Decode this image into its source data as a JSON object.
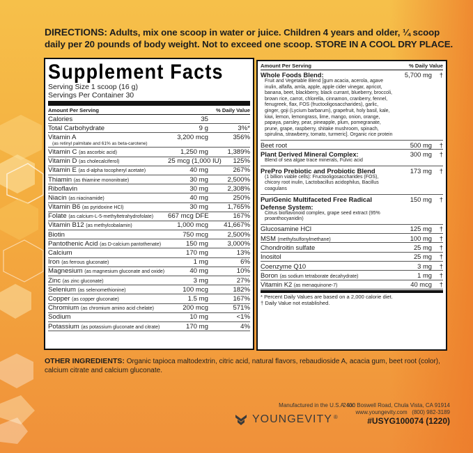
{
  "directions": {
    "label": "DIRECTIONS:",
    "text": "Adults, mix one scoop in water or juice. Children 4 years and older, ¼ scoop daily per 20 pounds of body weight. Not to exceed one scoop.",
    "storage": "STORE IN A COOL DRY PLACE."
  },
  "supplement_facts": {
    "title": "Supplement Facts",
    "serving_size": "Serving Size 1 scoop (16 g)",
    "servings_per_container": "Servings Per Container 30",
    "header_amount": "Amount Per Serving",
    "header_dv": "% Daily Value",
    "rows": [
      {
        "name": "Calories",
        "sub": "",
        "sub2": "",
        "amount": "35",
        "dv": ""
      },
      {
        "name": "Total Carbohydrate",
        "sub": "",
        "sub2": "",
        "amount": "9 g",
        "dv": "3%*"
      },
      {
        "name": "Vitamin A",
        "sub": "",
        "sub2": "(as retinyl palmitate and 61% as beta-carotene)",
        "amount": "3,200 mcg",
        "dv": "356%"
      },
      {
        "name": "Vitamin C",
        "sub": "(as ascorbic acid)",
        "sub2": "",
        "amount": "1,250 mg",
        "dv": "1,389%"
      },
      {
        "name": "Vitamin D",
        "sub": "(as cholecalciferol)",
        "sub2": "",
        "amount": "25 mcg (1,000 IU)",
        "dv": "125%"
      },
      {
        "name": "Vitamin E",
        "sub": "(as d-alpha tocopheryl acetate)",
        "sub2": "",
        "amount": "40 mg",
        "dv": "267%"
      },
      {
        "name": "Thiamin",
        "sub": "(as thiamine mononitrate)",
        "sub2": "",
        "amount": "30 mg",
        "dv": "2,500%"
      },
      {
        "name": "Riboflavin",
        "sub": "",
        "sub2": "",
        "amount": "30 mg",
        "dv": "2,308%"
      },
      {
        "name": "Niacin",
        "sub": "(as niacinamide)",
        "sub2": "",
        "amount": "40 mg",
        "dv": "250%"
      },
      {
        "name": "Vitamin B6",
        "sub": "(as pyridoxine HCl)",
        "sub2": "",
        "amount": "30 mg",
        "dv": "1,765%"
      },
      {
        "name": "Folate",
        "sub": "(as calcium-L-5-methyltetrahydrofolate)",
        "sub2": "",
        "amount": "667 mcg DFE",
        "dv": "167%"
      },
      {
        "name": "Vitamin B12",
        "sub": "(as methylcobalamin)",
        "sub2": "",
        "amount": "1,000 mcg",
        "dv": "41,667%"
      },
      {
        "name": "Biotin",
        "sub": "",
        "sub2": "",
        "amount": "750 mcg",
        "dv": "2,500%"
      },
      {
        "name": "Pantothenic Acid",
        "sub": "(as D-calcium pantothenate)",
        "sub2": "",
        "amount": "150 mg",
        "dv": "3,000%"
      },
      {
        "name": "Calcium",
        "sub": "",
        "sub2": "",
        "amount": "170 mg",
        "dv": "13%"
      },
      {
        "name": "Iron",
        "sub": "(as ferrous gluconate)",
        "sub2": "",
        "amount": "1 mg",
        "dv": "6%"
      },
      {
        "name": "Magnesium",
        "sub": "(as magnesium gluconate and oxide)",
        "sub2": "",
        "amount": "40 mg",
        "dv": "10%"
      },
      {
        "name": "Zinc",
        "sub": "(as zinc gluconate)",
        "sub2": "",
        "amount": "3 mg",
        "dv": "27%"
      },
      {
        "name": "Selenium",
        "sub": "(as selenomethionine)",
        "sub2": "",
        "amount": "100 mcg",
        "dv": "182%"
      },
      {
        "name": "Copper",
        "sub": "(as copper gluconate)",
        "sub2": "",
        "amount": "1.5 mg",
        "dv": "167%"
      },
      {
        "name": "Chromium",
        "sub": "(as chromium amino acid chelate)",
        "sub2": "",
        "amount": "200 mcg",
        "dv": "571%"
      },
      {
        "name": "Sodium",
        "sub": "",
        "sub2": "",
        "amount": "10 mg",
        "dv": "<1%"
      },
      {
        "name": "Potassium",
        "sub": "(as potassium gluconate and citrate)",
        "sub2": "",
        "amount": "170 mg",
        "dv": "4%"
      }
    ]
  },
  "right_panel": {
    "header_amount": "Amount Per Serving",
    "header_dv": "% Daily Value",
    "blends": [
      {
        "name": "Whole Foods Blend:",
        "amount": "5,700 mg",
        "dagger": "†",
        "desc": "Fruit and Vegetable Blend [gum acacia, acerola, agave inulin, alfalfa, amla, apple, apple cider vinegar, apricot, banana, beet, blackberry, black currant, blueberry, broccoli, brown rice, carrot, chlorella, cinnamon, cranberry, fennel, fenugreek, flax, FOS (fructooligosaccharides), garlic, ginger, goji (Lycium barbarum), grapefruit, holy basil, kale, kiwi, lemon, lemongrass, lime, mango, onion, orange, papaya, parsley, pear, pineapple, plum, pomegranate, prune, grape, raspberry, shitake mushroom, spinach, spirulina, strawberry, tomato, turmeric]. Organic rice protein"
      },
      {
        "name": "Beet root",
        "amount": "500 mg",
        "dagger": "†",
        "desc": ""
      },
      {
        "name": "Plant Derived Mineral Complex:",
        "amount": "300 mg",
        "dagger": "†",
        "desc": "Blend of sea algae trace minerals, Fulvic acid"
      },
      {
        "name": "PrePro Prebiotic and Probiotic Blend",
        "amount": "173 mg",
        "dagger": "†",
        "desc": "(1 billion viable cells): Fructooligosaccharides (FOS), chicory root inulin, Lactobacillus acidophilus, Bacillus coagulans"
      },
      {
        "name": "PuriGenic Multifaceted Free Radical Defense System:",
        "amount": "150 mg",
        "dagger": "†",
        "desc": "Citrus bioflavonoid complex, grape seed extract (95% proanthocyanidin)"
      }
    ],
    "rows": [
      {
        "name": "Glucosamine HCl",
        "sub": "",
        "amount": "125 mg",
        "dagger": "†"
      },
      {
        "name": "MSM",
        "sub": "(methylsulfonylmethane)",
        "amount": "100 mg",
        "dagger": "†"
      },
      {
        "name": "Chondroitin sulfate",
        "sub": "",
        "amount": "25 mg",
        "dagger": "†"
      },
      {
        "name": "Inositol",
        "sub": "",
        "amount": "25 mg",
        "dagger": "†"
      },
      {
        "name": "Coenzyme Q10",
        "sub": "",
        "amount": "3 mg",
        "dagger": "†"
      },
      {
        "name": "Boron",
        "sub": "(as sodium tetraborate decahydrate)",
        "amount": "1 mg",
        "dagger": "†"
      },
      {
        "name": "Vitamin K2",
        "sub": "(as menaquinone-7)",
        "amount": "40 mcg",
        "dagger": "†"
      }
    ],
    "footnote_1": "* Percent Daily Values are based on a 2,000 calorie diet.",
    "footnote_2": "† Daily Value not established."
  },
  "other_ingredients": {
    "label": "OTHER INGREDIENTS:",
    "text": "Organic tapioca maltodextrin, citric acid, natural flavors, rebaudioside A, acacia gum, beet root (color), calcium citrate and calcium gluconate."
  },
  "footer": {
    "manufactured": "Manufactured in the U.S.A. for:",
    "brand": "YOUNGEVITY",
    "trademark": "®",
    "address": "2400 Boswell Road, Chula Vista, CA 91914",
    "website_phone": "www.youngevity.com   (800) 982-3189",
    "product_code": "#USYG100074 (1220)"
  },
  "colors": {
    "bg_top": "#f6c04a",
    "bg_bottom": "#f0903a",
    "ink": "#111111"
  }
}
